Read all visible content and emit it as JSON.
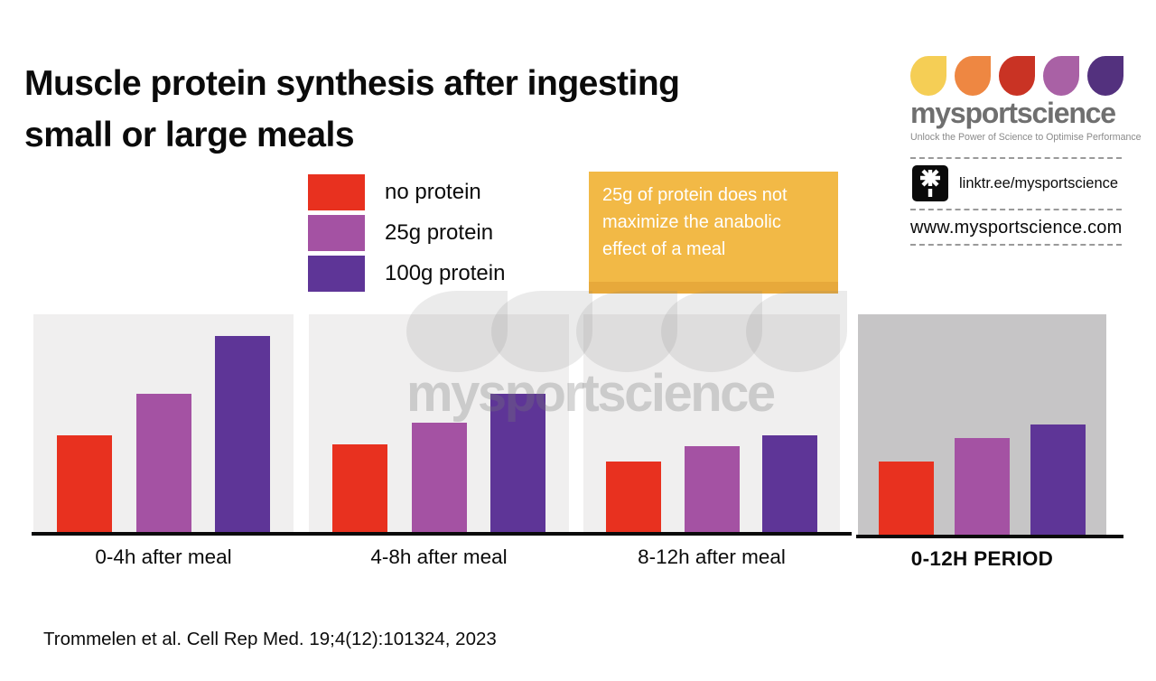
{
  "title": "Muscle protein synthesis after ingesting small or large meals",
  "title_lines": [
    "Muscle protein synthesis after ingesting",
    "small or large meals"
  ],
  "legend": {
    "items": [
      {
        "label": "no protein",
        "color": "#E8311F"
      },
      {
        "label": "25g protein",
        "color": "#A452A3"
      },
      {
        "label": "100g protein",
        "color": "#5E3597"
      }
    ]
  },
  "callout": {
    "text": "25g of protein does not maximize the anabolic effect of a meal",
    "bg": "#F2B946",
    "edge": "#E7A93B"
  },
  "branding": {
    "name": "mysportscience",
    "tagline": "Unlock the Power of Science to Optimise Performance",
    "linktree": "linktr.ee/mysportscience",
    "website": "www.mysportscience.com",
    "petal_colors": [
      "#F5CE55",
      "#EE8742",
      "#C93324",
      "#A961A5",
      "#53317E"
    ],
    "icons": [
      "linktree-asterisk-icon"
    ]
  },
  "watermark": {
    "text": "mysportscience"
  },
  "chart_data": {
    "type": "bar",
    "categories": [
      "0-4h after meal",
      "4-8h after meal",
      "8-12h after meal",
      "0-12H PERIOD"
    ],
    "series": [
      {
        "name": "no protein",
        "color": "#E8311F",
        "values": [
          45,
          41,
          33,
          33
        ]
      },
      {
        "name": "25g protein",
        "color": "#A452A3",
        "values": [
          64,
          51,
          40,
          44
        ]
      },
      {
        "name": "100g protein",
        "color": "#5E3597",
        "values": [
          90,
          64,
          45,
          50
        ]
      }
    ],
    "ylim": [
      0,
      100
    ],
    "y_axis_shown": false,
    "grid": false,
    "legend_position": "top-left",
    "panel_colors": [
      "#F0EFEF",
      "#F0EFEF",
      "#F0EFEF",
      "#C6C5C6"
    ],
    "emphasize_last_category": true,
    "note": "values are relative bar heights in % of panel height; chart shows no numeric axis"
  },
  "citation": "Trommelen et al. Cell Rep Med. 19;4(12):101324, 2023"
}
